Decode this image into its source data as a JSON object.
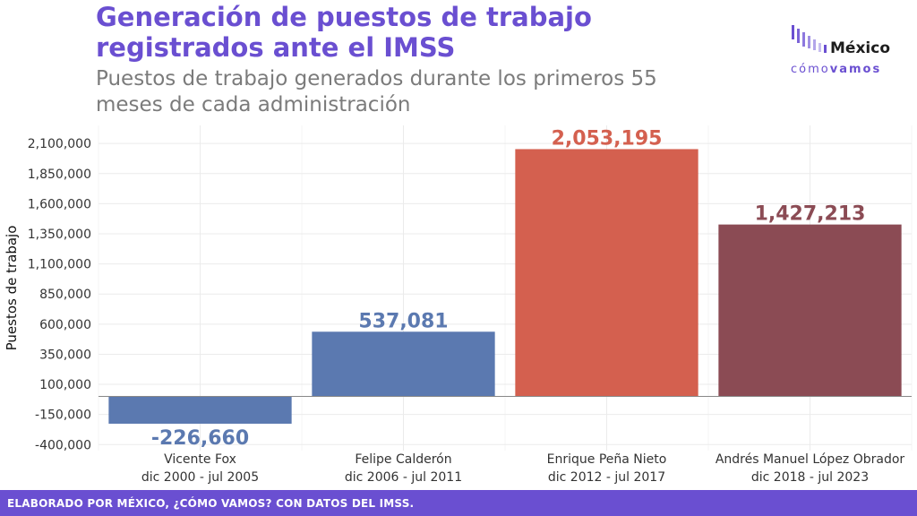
{
  "header": {
    "title": "Generación de puestos de trabajo registrados ante el IMSS",
    "subtitle": "Puestos de trabajo generados durante los primeros 55 meses de cada administración"
  },
  "logo": {
    "main": "México",
    "sub_light": "cómo",
    "sub_bold": "vamos"
  },
  "footer": {
    "text": "ELABORADO POR MÉXICO, ¿CÓMO VAMOS? CON DATOS DEL IMSS."
  },
  "chart_data": {
    "type": "bar",
    "title": "Generación de puestos de trabajo registrados ante el IMSS",
    "subtitle": "Puestos de trabajo generados durante los primeros 55 meses de cada administración",
    "xlabel": "",
    "ylabel": "Puestos de trabajo",
    "categories": [
      [
        "Vicente Fox",
        "dic 2000 - jul 2005"
      ],
      [
        "Felipe Calderón",
        "dic 2006 - jul 2011"
      ],
      [
        "Enrique Peña Nieto",
        "dic 2012 - jul 2017"
      ],
      [
        "Andrés Manuel López Obrador",
        "dic 2018 - jul 2023"
      ]
    ],
    "values": [
      -226660,
      537081,
      2053195,
      1427213
    ],
    "value_labels": [
      "-226,660",
      "537,081",
      "2,053,195",
      "1,427,213"
    ],
    "colors": [
      "#5b79b0",
      "#5b79b0",
      "#d4604f",
      "#8b4b54"
    ],
    "yticks": [
      -400000,
      -150000,
      100000,
      350000,
      600000,
      850000,
      1100000,
      1350000,
      1600000,
      1850000,
      2100000
    ],
    "ytick_labels": [
      "-400,000",
      "-150,000",
      "100,000",
      "350,000",
      "600,000",
      "850,000",
      "1,100,000",
      "1,350,000",
      "1,600,000",
      "1,850,000",
      "2,100,000"
    ],
    "ylim": [
      -450000,
      2250000
    ],
    "grid": true,
    "legend": "none"
  }
}
